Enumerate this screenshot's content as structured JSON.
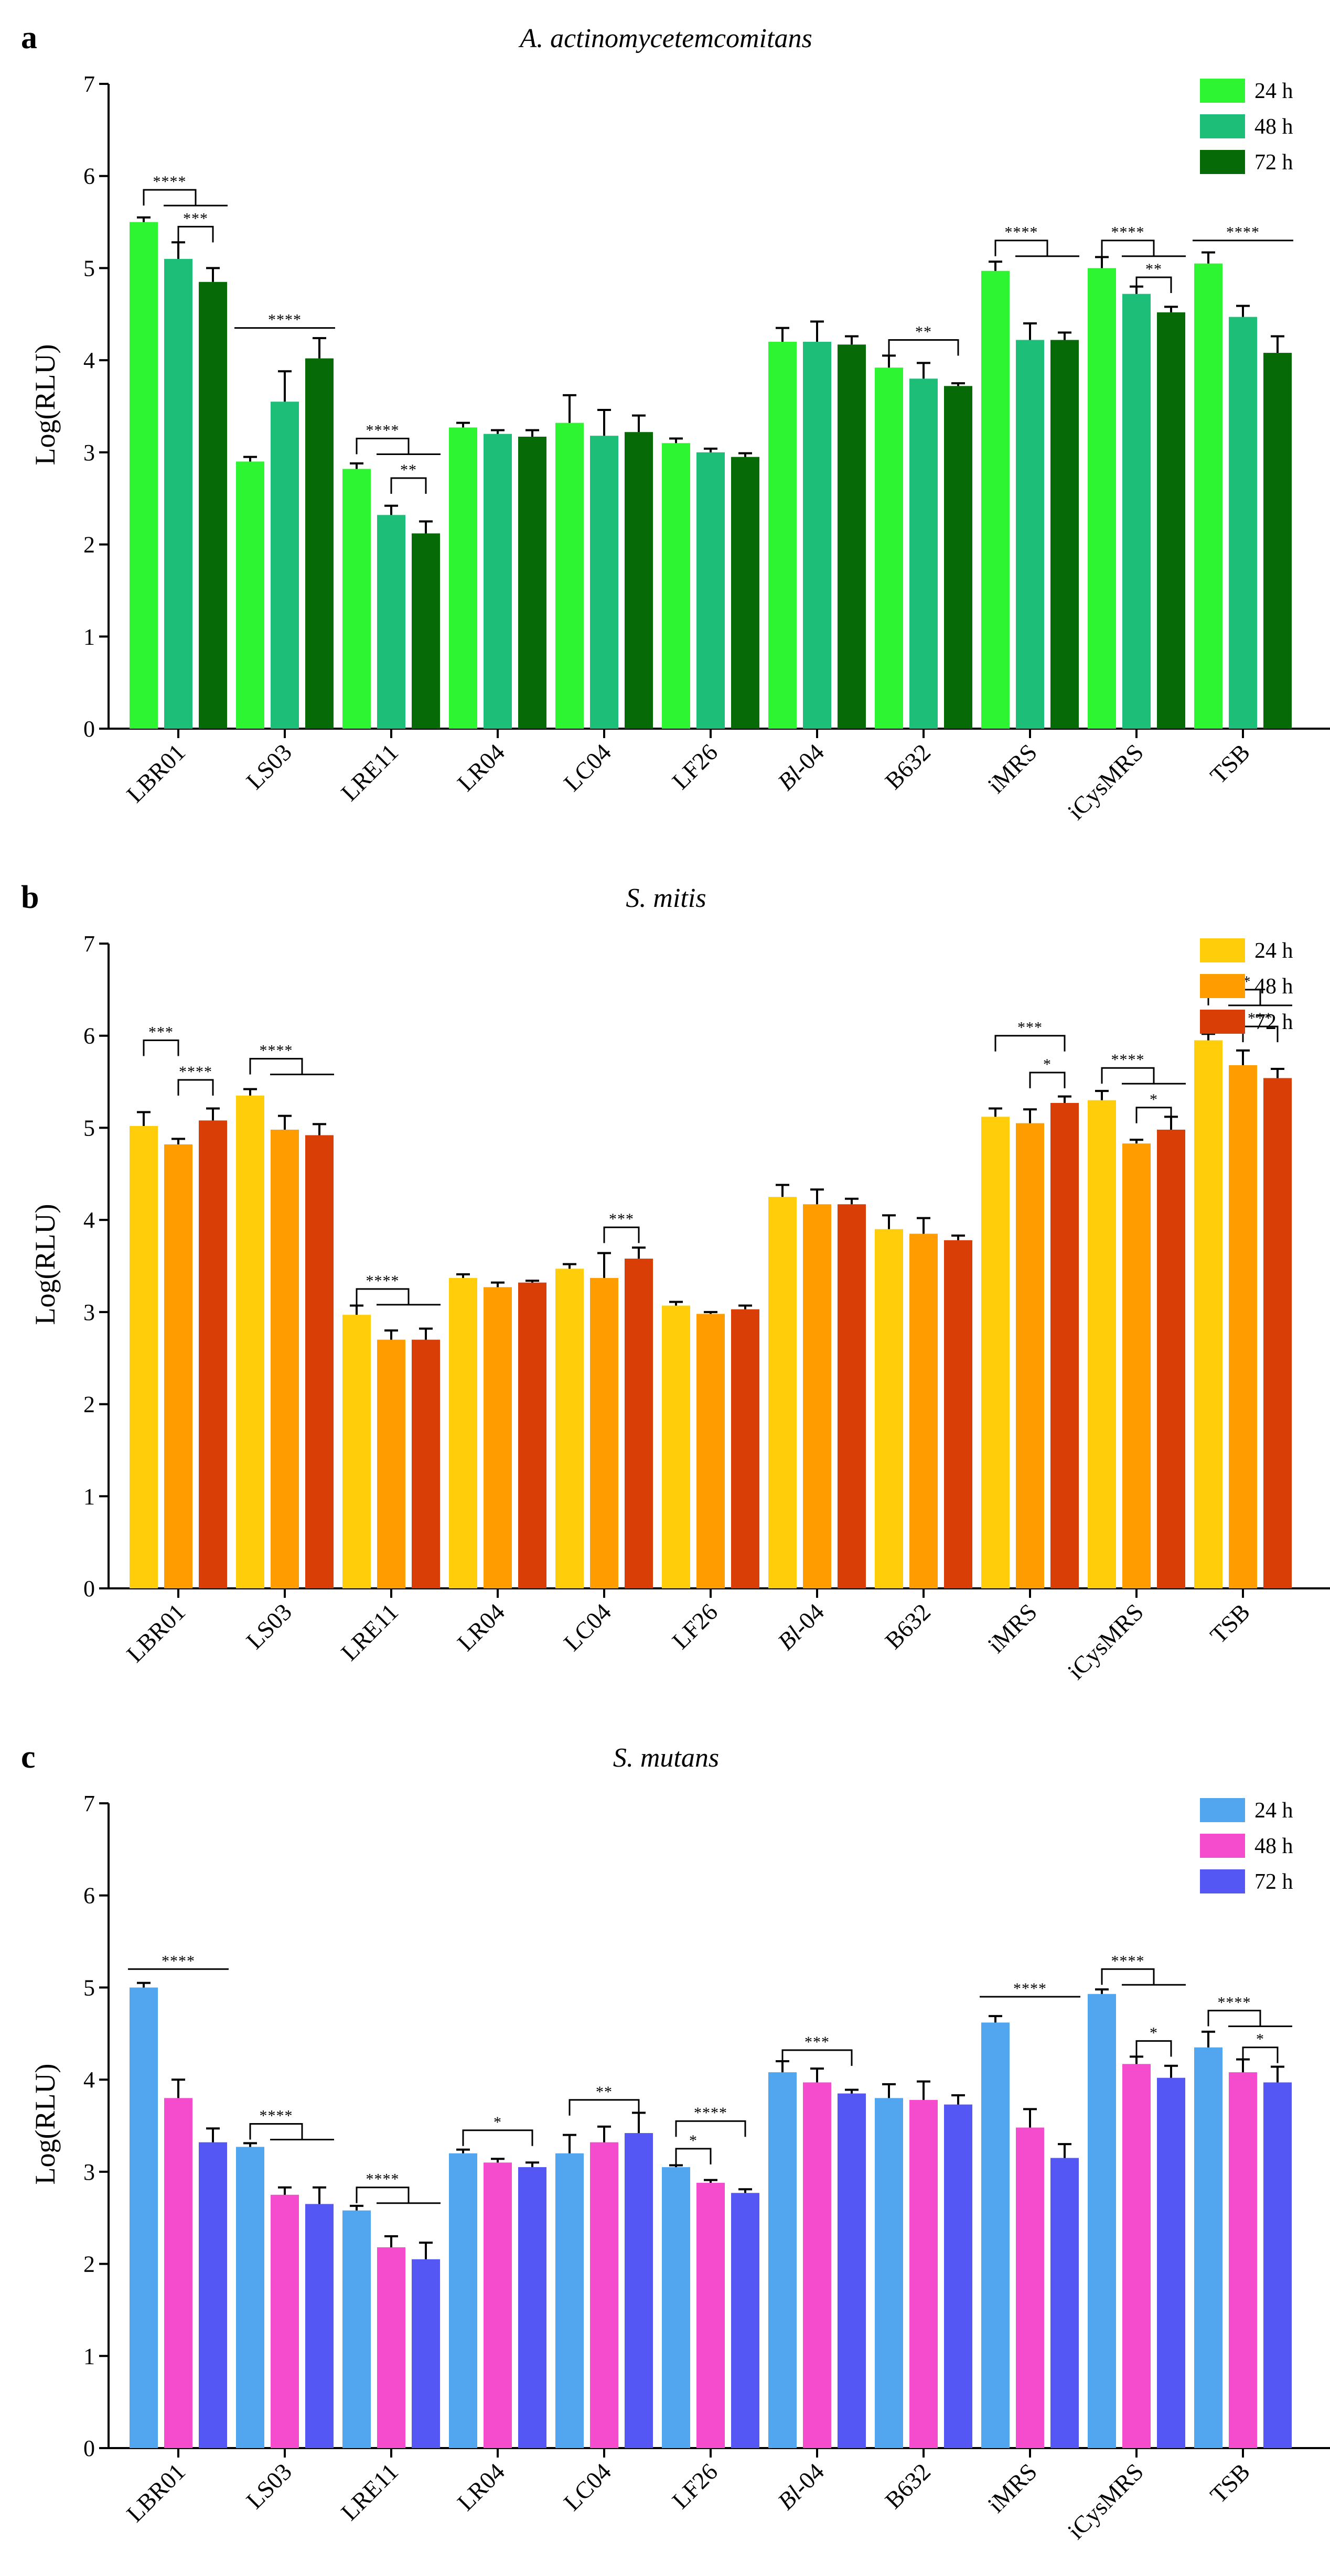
{
  "chart_data": [
    {
      "panel": "a",
      "type": "bar",
      "title": "A. actinomycetemcomitans",
      "xlabel": "",
      "ylabel": "Log(RLU)",
      "ylim": [
        0,
        7
      ],
      "yticks": [
        "0",
        "1",
        "2",
        "3",
        "4",
        "5",
        "6",
        "7"
      ],
      "categories": [
        {
          "text": "LBR01",
          "italic": ""
        },
        {
          "text": "LS03",
          "italic": ""
        },
        {
          "text": "LRE11",
          "italic": ""
        },
        {
          "text": "LR04",
          "italic": ""
        },
        {
          "text": "LC04",
          "italic": ""
        },
        {
          "text": "LF26",
          "italic": ""
        },
        {
          "text": "-04",
          "italic": "Bl"
        },
        {
          "text": "B632",
          "italic": ""
        },
        {
          "text": "iMRS",
          "italic": ""
        },
        {
          "text": "iCysMRS",
          "italic": ""
        },
        {
          "text": "TSB",
          "italic": ""
        }
      ],
      "legend_position": "top-right",
      "series": [
        {
          "name": "24 h",
          "color": "#2ef532",
          "values": [
            5.5,
            2.9,
            2.82,
            3.27,
            3.32,
            3.1,
            4.2,
            3.92,
            4.97,
            5.0,
            5.05
          ],
          "errors": [
            0.05,
            0.05,
            0.06,
            0.05,
            0.3,
            0.05,
            0.15,
            0.13,
            0.1,
            0.12,
            0.12
          ]
        },
        {
          "name": "48 h",
          "color": "#1dbf78",
          "values": [
            5.1,
            3.55,
            2.32,
            3.2,
            3.18,
            3.0,
            4.2,
            3.8,
            4.22,
            4.72,
            4.47
          ],
          "errors": [
            0.18,
            0.33,
            0.1,
            0.04,
            0.28,
            0.04,
            0.22,
            0.17,
            0.18,
            0.08,
            0.12
          ]
        },
        {
          "name": "72 h",
          "color": "#066b06",
          "values": [
            4.85,
            4.02,
            2.12,
            3.17,
            3.22,
            2.95,
            4.17,
            3.72,
            4.22,
            4.52,
            4.08
          ],
          "errors": [
            0.15,
            0.22,
            0.13,
            0.07,
            0.18,
            0.04,
            0.09,
            0.03,
            0.08,
            0.06,
            0.18
          ]
        }
      ],
      "significance": [
        {
          "cat": 0,
          "label": "****",
          "style": "bracket-fork",
          "from": 0,
          "to_a": 1,
          "to_b": 2,
          "y": 5.85
        },
        {
          "cat": 0,
          "label": "***",
          "style": "bracket",
          "from": 1,
          "to": 2,
          "y": 5.45
        },
        {
          "cat": 1,
          "label": "****",
          "style": "line",
          "from": 0,
          "to": 2,
          "y": 4.35
        },
        {
          "cat": 2,
          "label": "****",
          "style": "bracket-fork",
          "from": 0,
          "to_a": 1,
          "to_b": 2,
          "y": 3.15
        },
        {
          "cat": 2,
          "label": "**",
          "style": "bracket",
          "from": 1,
          "to": 2,
          "y": 2.72
        },
        {
          "cat": 7,
          "label": "**",
          "style": "bracket",
          "from": 0,
          "to": 2,
          "y": 4.22
        },
        {
          "cat": 8,
          "label": "****",
          "style": "bracket-fork",
          "from": 0,
          "to_a": 1,
          "to_b": 2,
          "y": 5.3
        },
        {
          "cat": 9,
          "label": "****",
          "style": "bracket-fork",
          "from": 0,
          "to_a": 1,
          "to_b": 2,
          "y": 5.3
        },
        {
          "cat": 9,
          "label": "**",
          "style": "bracket",
          "from": 1,
          "to": 2,
          "y": 4.9
        },
        {
          "cat": 10,
          "label": "****",
          "style": "line",
          "from": 0,
          "to": 2,
          "y": 5.3
        }
      ]
    },
    {
      "panel": "b",
      "type": "bar",
      "title": "S. mitis",
      "xlabel": "",
      "ylabel": "Log(RLU)",
      "ylim": [
        0,
        7
      ],
      "yticks": [
        "0",
        "1",
        "2",
        "3",
        "4",
        "5",
        "6",
        "7"
      ],
      "categories": [
        {
          "text": "LBR01",
          "italic": ""
        },
        {
          "text": "LS03",
          "italic": ""
        },
        {
          "text": "LRE11",
          "italic": ""
        },
        {
          "text": "LR04",
          "italic": ""
        },
        {
          "text": "LC04",
          "italic": ""
        },
        {
          "text": "LF26",
          "italic": ""
        },
        {
          "text": "-04",
          "italic": "Bl"
        },
        {
          "text": "B632",
          "italic": ""
        },
        {
          "text": "iMRS",
          "italic": ""
        },
        {
          "text": "iCysMRS",
          "italic": ""
        },
        {
          "text": "TSB",
          "italic": ""
        }
      ],
      "legend_position": "top-right",
      "series": [
        {
          "name": "24 h",
          "color": "#ffcd0a",
          "values": [
            5.02,
            5.35,
            2.97,
            3.37,
            3.47,
            3.07,
            4.25,
            3.9,
            5.12,
            5.3,
            5.95
          ],
          "errors": [
            0.15,
            0.07,
            0.1,
            0.04,
            0.05,
            0.04,
            0.13,
            0.15,
            0.09,
            0.1,
            0.07
          ]
        },
        {
          "name": "48 h",
          "color": "#ff9c00",
          "values": [
            4.82,
            4.98,
            2.7,
            3.27,
            3.37,
            2.98,
            4.17,
            3.85,
            5.05,
            4.83,
            5.68
          ],
          "errors": [
            0.06,
            0.15,
            0.1,
            0.05,
            0.27,
            0.02,
            0.16,
            0.17,
            0.15,
            0.04,
            0.16
          ]
        },
        {
          "name": "72 h",
          "color": "#d93e06",
          "values": [
            5.08,
            4.92,
            2.7,
            3.32,
            3.58,
            3.03,
            4.17,
            3.78,
            5.27,
            4.98,
            5.54
          ],
          "errors": [
            0.13,
            0.12,
            0.12,
            0.02,
            0.12,
            0.04,
            0.06,
            0.05,
            0.07,
            0.14,
            0.1
          ]
        }
      ],
      "significance": [
        {
          "cat": 0,
          "label": "***",
          "style": "bracket",
          "from": 0,
          "to": 1,
          "y": 5.95
        },
        {
          "cat": 0,
          "label": "****",
          "style": "bracket",
          "from": 1,
          "to": 2,
          "y": 5.52
        },
        {
          "cat": 1,
          "label": "****",
          "style": "bracket-fork",
          "from": 0,
          "to_a": 1,
          "to_b": 2,
          "y": 5.75
        },
        {
          "cat": 2,
          "label": "****",
          "style": "bracket-fork",
          "from": 0,
          "to_a": 1,
          "to_b": 2,
          "y": 3.25
        },
        {
          "cat": 4,
          "label": "***",
          "style": "bracket",
          "from": 1,
          "to": 2,
          "y": 3.92
        },
        {
          "cat": 8,
          "label": "***",
          "style": "bracket",
          "from": 0,
          "to": 2,
          "y": 6.0
        },
        {
          "cat": 8,
          "label": "*",
          "style": "bracket",
          "from": 1,
          "to": 2,
          "y": 5.6
        },
        {
          "cat": 9,
          "label": "****",
          "style": "bracket-fork",
          "from": 0,
          "to_a": 1,
          "to_b": 2,
          "y": 5.65
        },
        {
          "cat": 9,
          "label": "*",
          "style": "bracket",
          "from": 1,
          "to": 2,
          "y": 5.22
        },
        {
          "cat": 10,
          "label": "****",
          "style": "bracket-fork",
          "from": 0,
          "to_a": 1,
          "to_b": 2,
          "y": 6.5
        },
        {
          "cat": 10,
          "label": "***",
          "style": "bracket",
          "from": 1,
          "to": 2,
          "y": 6.1
        }
      ]
    },
    {
      "panel": "c",
      "type": "bar",
      "title": "S. mutans",
      "xlabel": "",
      "ylabel": "Log(RLU)",
      "ylim": [
        0,
        7
      ],
      "yticks": [
        "0",
        "1",
        "2",
        "3",
        "4",
        "5",
        "6",
        "7"
      ],
      "categories": [
        {
          "text": "LBR01",
          "italic": ""
        },
        {
          "text": "LS03",
          "italic": ""
        },
        {
          "text": "LRE11",
          "italic": ""
        },
        {
          "text": "LR04",
          "italic": ""
        },
        {
          "text": "LC04",
          "italic": ""
        },
        {
          "text": "LF26",
          "italic": ""
        },
        {
          "text": "-04",
          "italic": "Bl"
        },
        {
          "text": "B632",
          "italic": ""
        },
        {
          "text": "iMRS",
          "italic": ""
        },
        {
          "text": "iCysMRS",
          "italic": ""
        },
        {
          "text": "TSB",
          "italic": ""
        }
      ],
      "legend_position": "top-right",
      "series": [
        {
          "name": "24 h",
          "color": "#52a6f0",
          "values": [
            5.0,
            3.27,
            2.58,
            3.2,
            3.2,
            3.05,
            4.08,
            3.8,
            4.62,
            4.93,
            4.35
          ],
          "errors": [
            0.05,
            0.04,
            0.05,
            0.04,
            0.2,
            0.02,
            0.12,
            0.15,
            0.07,
            0.05,
            0.17
          ]
        },
        {
          "name": "48 h",
          "color": "#f54ccd",
          "values": [
            3.8,
            2.75,
            2.18,
            3.1,
            3.32,
            2.88,
            3.97,
            3.78,
            3.48,
            4.17,
            4.08
          ],
          "errors": [
            0.2,
            0.08,
            0.12,
            0.04,
            0.17,
            0.03,
            0.15,
            0.2,
            0.2,
            0.08,
            0.14
          ]
        },
        {
          "name": "72 h",
          "color": "#5557f5",
          "values": [
            3.32,
            2.65,
            2.05,
            3.05,
            3.42,
            2.77,
            3.85,
            3.73,
            3.15,
            4.02,
            3.97
          ],
          "errors": [
            0.15,
            0.18,
            0.18,
            0.05,
            0.22,
            0.04,
            0.04,
            0.1,
            0.15,
            0.13,
            0.17
          ]
        }
      ],
      "significance": [
        {
          "cat": 0,
          "label": "****",
          "style": "line",
          "from": 0,
          "to": 2,
          "y": 5.2
        },
        {
          "cat": 1,
          "label": "****",
          "style": "bracket-fork",
          "from": 0,
          "to_a": 1,
          "to_b": 2,
          "y": 3.52
        },
        {
          "cat": 2,
          "label": "****",
          "style": "bracket-fork",
          "from": 0,
          "to_a": 1,
          "to_b": 2,
          "y": 2.83
        },
        {
          "cat": 3,
          "label": "*",
          "style": "bracket",
          "from": 0,
          "to": 2,
          "y": 3.45
        },
        {
          "cat": 4,
          "label": "**",
          "style": "bracket",
          "from": 0,
          "to": 2,
          "y": 3.78
        },
        {
          "cat": 5,
          "label": "*",
          "style": "bracket",
          "from": 0,
          "to": 1,
          "y": 3.25
        },
        {
          "cat": 5,
          "label": "****",
          "style": "bracket",
          "from": 0,
          "to": 2,
          "y": 3.55
        },
        {
          "cat": 6,
          "label": "***",
          "style": "bracket",
          "from": 0,
          "to": 2,
          "y": 4.32
        },
        {
          "cat": 8,
          "label": "****",
          "style": "line",
          "from": 0,
          "to": 2,
          "y": 4.9
        },
        {
          "cat": 9,
          "label": "****",
          "style": "bracket-fork",
          "from": 0,
          "to_a": 1,
          "to_b": 2,
          "y": 5.2
        },
        {
          "cat": 9,
          "label": "*",
          "style": "bracket",
          "from": 1,
          "to": 2,
          "y": 4.42
        },
        {
          "cat": 10,
          "label": "****",
          "style": "bracket-fork",
          "from": 0,
          "to_a": 1,
          "to_b": 2,
          "y": 4.75
        },
        {
          "cat": 10,
          "label": "*",
          "style": "bracket",
          "from": 1,
          "to": 2,
          "y": 4.35
        }
      ]
    }
  ]
}
